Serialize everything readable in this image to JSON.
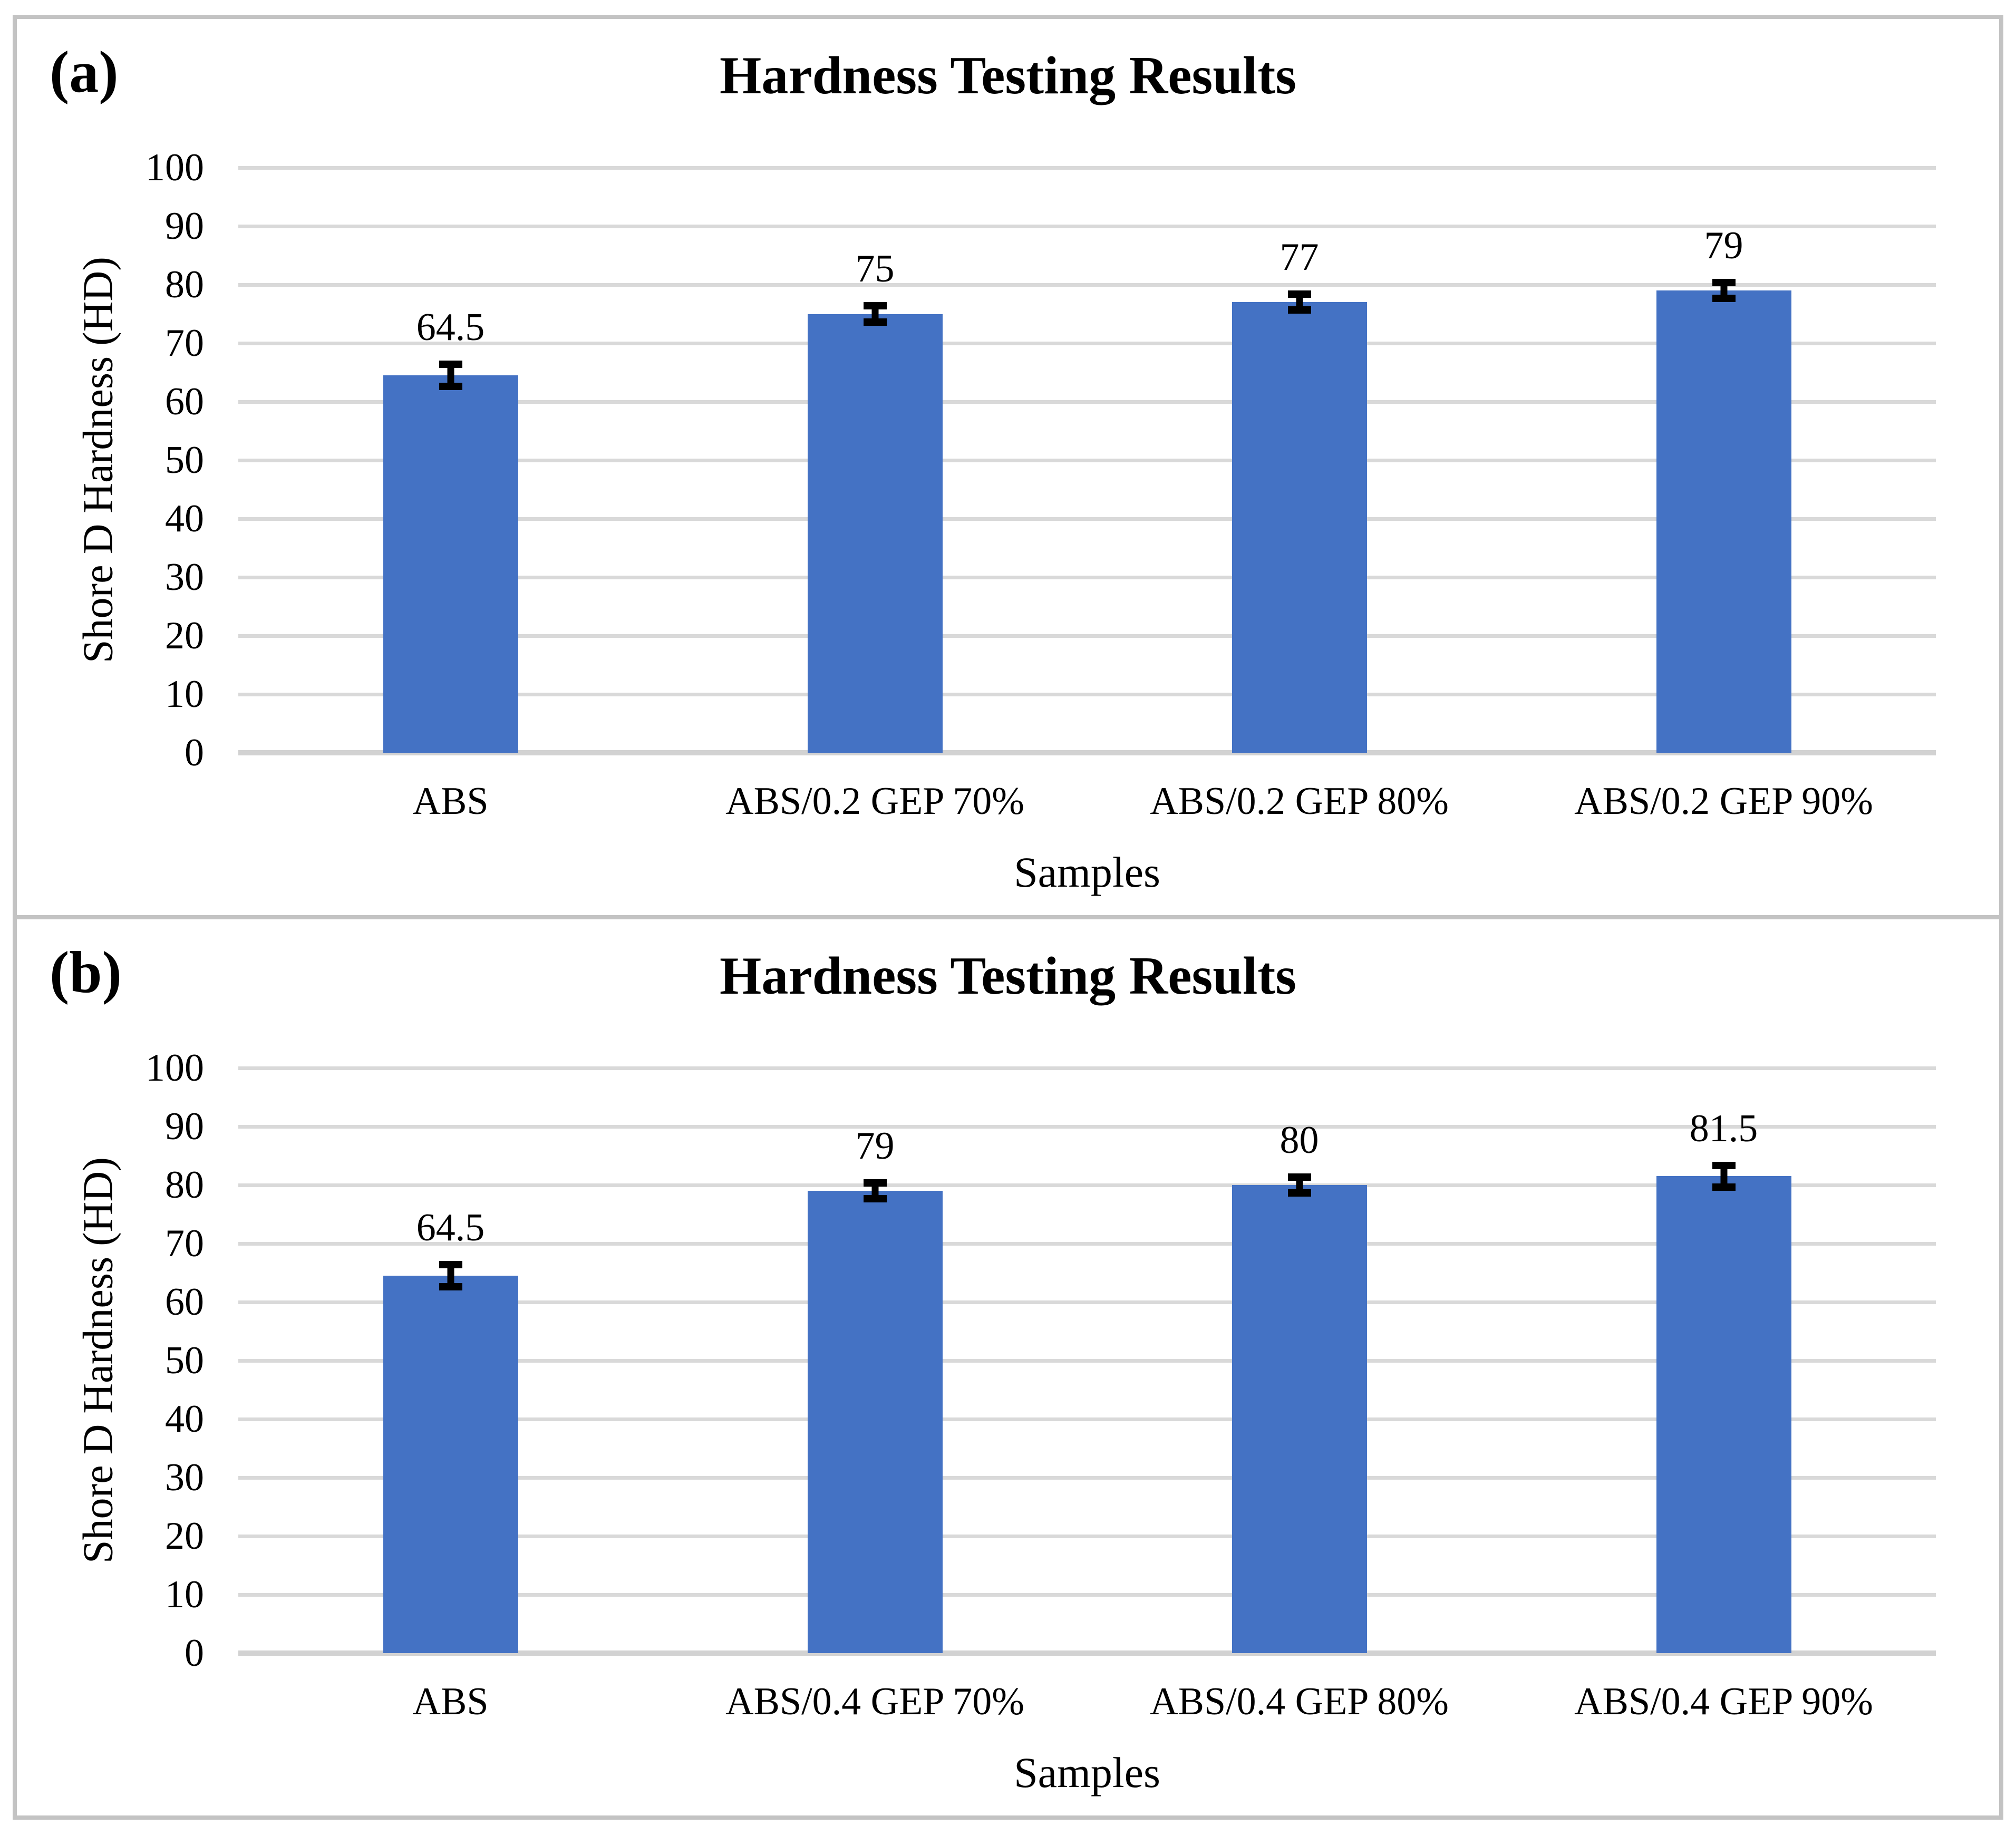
{
  "figure": {
    "border_color": "#c3c3c3",
    "background_color": "#ffffff"
  },
  "chart_data": [
    {
      "type": "bar",
      "panel_label": "(a)",
      "title": "Hardness Testing Results",
      "x_axis_title": "Samples",
      "y_axis_title": "Shore D Hardness (HD)",
      "ylim": [
        0,
        100
      ],
      "yticks": [
        0,
        10,
        20,
        30,
        40,
        50,
        60,
        70,
        80,
        90,
        100
      ],
      "grid": "horizontal",
      "gridline_color": "#d9d9d9",
      "bar_color": "#4472C4",
      "error_bar_color": "#000000",
      "legend": "none",
      "categories": [
        "ABS",
        "ABS/0.2 GEP 70%",
        "ABS/0.2 GEP 80%",
        "ABS/0.2 GEP 90%"
      ],
      "values": [
        64.5,
        75,
        77,
        79
      ],
      "errors": [
        2.5,
        2,
        2,
        2
      ],
      "data_labels": [
        "64.5",
        "75",
        "77",
        "79"
      ]
    },
    {
      "type": "bar",
      "panel_label": "(b)",
      "title": "Hardness Testing Results",
      "x_axis_title": "Samples",
      "y_axis_title": "Shore D Hardness (HD)",
      "ylim": [
        0,
        100
      ],
      "yticks": [
        0,
        10,
        20,
        30,
        40,
        50,
        60,
        70,
        80,
        90,
        100
      ],
      "grid": "horizontal",
      "gridline_color": "#d9d9d9",
      "bar_color": "#4472C4",
      "error_bar_color": "#000000",
      "legend": "none",
      "categories": [
        "ABS",
        "ABS/0.4 GEP 70%",
        "ABS/0.4 GEP 80%",
        "ABS/0.4 GEP 90%"
      ],
      "values": [
        64.5,
        79,
        80,
        81.5
      ],
      "errors": [
        2.5,
        2,
        2,
        2.5
      ],
      "data_labels": [
        "64.5",
        "79",
        "80",
        "81.5"
      ]
    }
  ]
}
